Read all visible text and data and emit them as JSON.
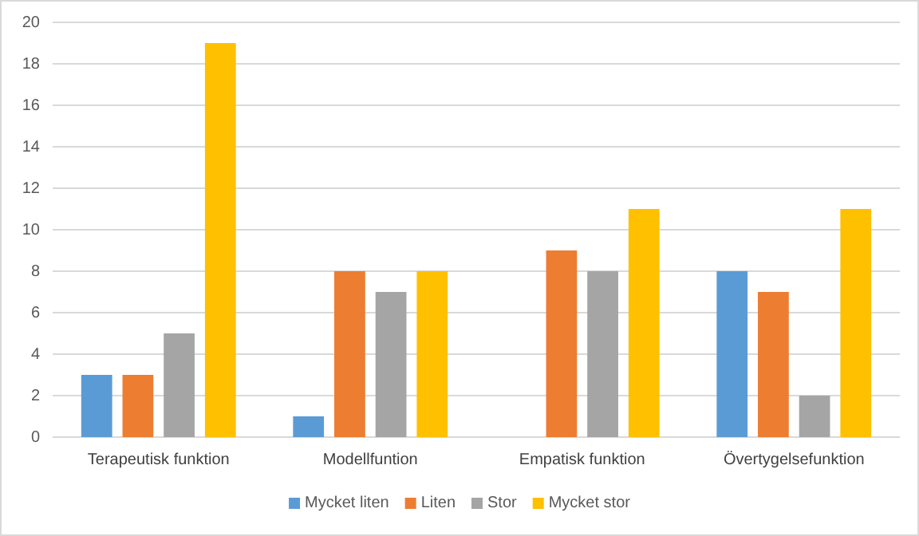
{
  "chart_data": {
    "type": "bar",
    "categories": [
      "Terapeutisk funktion",
      "Modellfuntion",
      "Empatisk funktion",
      "Övertygelsefunktion"
    ],
    "series": [
      {
        "name": "Mycket liten",
        "color": "#5b9bd5",
        "values": [
          3,
          1,
          0,
          8
        ]
      },
      {
        "name": "Liten",
        "color": "#ed7d31",
        "values": [
          3,
          8,
          9,
          7
        ]
      },
      {
        "name": "Stor",
        "color": "#a5a5a5",
        "values": [
          5,
          7,
          8,
          2
        ]
      },
      {
        "name": "Mycket stor",
        "color": "#ffc000",
        "values": [
          19,
          8,
          11,
          11
        ]
      }
    ],
    "ylim": [
      0,
      20
    ],
    "yticks": [
      0,
      2,
      4,
      6,
      8,
      10,
      12,
      14,
      16,
      18,
      20
    ],
    "grid": "y",
    "legend": "bottom"
  }
}
